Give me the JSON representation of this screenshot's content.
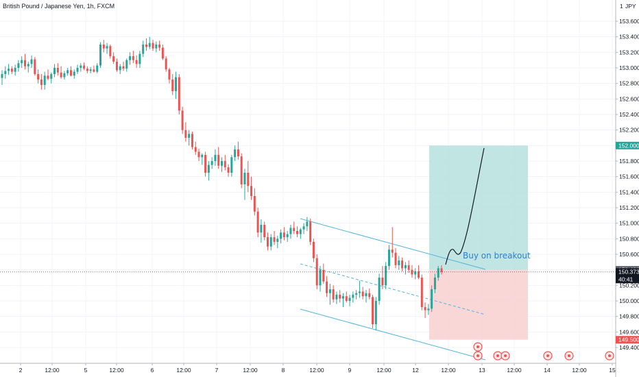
{
  "header": {
    "title": "British Pound / Japanese Yen, 1h, FXCM",
    "currency_label": "JPY",
    "currency_count": "1"
  },
  "colors": {
    "up": "#26a69a",
    "down": "#ef5350",
    "target_zone": "#b2dfdb",
    "stop_zone": "#f8d0d0",
    "channel": "#4fb3e0",
    "target_badge": "#22a699",
    "stop_badge": "#ef5350",
    "price_badge": "#131722"
  },
  "chart_data": {
    "type": "candlestick",
    "symbol": "British Pound / Japanese Yen",
    "interval": "1h",
    "source": "FXCM",
    "y_axis": {
      "ticks": [
        "153.600",
        "153.400",
        "153.200",
        "153.000",
        "152.800",
        "152.600",
        "152.400",
        "152.200",
        "152.000",
        "151.800",
        "151.600",
        "151.400",
        "151.200",
        "151.000",
        "150.800",
        "150.600",
        "150.400",
        "150.200",
        "150.000",
        "149.800",
        "149.600",
        "149.500",
        "149.400"
      ],
      "tick_values": [
        153.6,
        153.4,
        153.2,
        153.0,
        152.8,
        152.6,
        152.4,
        152.2,
        152.0,
        151.8,
        151.6,
        151.4,
        151.2,
        151.0,
        150.8,
        150.6,
        150.4,
        150.2,
        150.0,
        149.8,
        149.6,
        149.5,
        149.4
      ],
      "range": [
        149.37,
        153.72
      ]
    },
    "x_axis": {
      "ticks": [
        "2",
        "12:00",
        "5",
        "12:00",
        "6",
        "12:00",
        "7",
        "12:00",
        "8",
        "12:00",
        "9",
        "12:00",
        "12",
        "12:00",
        "13",
        "12:00",
        "14",
        "12:00",
        "15"
      ]
    },
    "price_levels": {
      "target": {
        "label": "152.000",
        "value": 152.0
      },
      "entry": {
        "label": "150.400",
        "value": 150.4
      },
      "current": {
        "label": "150.373",
        "value": 150.373,
        "countdown": "40:41"
      },
      "stop": {
        "label": "149.500",
        "value": 149.5
      }
    },
    "annotation": "Buy on breakout",
    "candles": [
      [
        152.87,
        152.97,
        152.78,
        152.92
      ],
      [
        152.92,
        153.02,
        152.86,
        152.96
      ],
      [
        152.96,
        153.05,
        152.91,
        152.99
      ],
      [
        152.99,
        153.02,
        152.92,
        152.95
      ],
      [
        152.95,
        153.04,
        152.9,
        153.0
      ],
      [
        153.0,
        153.1,
        152.95,
        153.06
      ],
      [
        153.06,
        153.15,
        153.0,
        153.1
      ],
      [
        153.1,
        153.18,
        152.98,
        153.02
      ],
      [
        153.02,
        153.08,
        152.94,
        153.05
      ],
      [
        153.05,
        153.16,
        153.0,
        153.11
      ],
      [
        153.11,
        153.14,
        152.9,
        152.92
      ],
      [
        152.92,
        152.98,
        152.8,
        152.85
      ],
      [
        152.85,
        152.92,
        152.72,
        152.78
      ],
      [
        152.78,
        152.95,
        152.72,
        152.9
      ],
      [
        152.9,
        152.98,
        152.84,
        152.86
      ],
      [
        152.86,
        152.94,
        152.8,
        152.92
      ],
      [
        152.92,
        153.05,
        152.88,
        153.0
      ],
      [
        153.0,
        153.06,
        152.9,
        152.94
      ],
      [
        152.94,
        153.02,
        152.86,
        152.88
      ],
      [
        152.88,
        152.96,
        152.85,
        152.93
      ],
      [
        152.93,
        153.0,
        152.9,
        152.97
      ],
      [
        152.97,
        153.02,
        152.89,
        152.9
      ],
      [
        152.9,
        152.98,
        152.86,
        152.95
      ],
      [
        152.95,
        153.04,
        152.92,
        153.0
      ],
      [
        153.0,
        153.06,
        152.95,
        153.03
      ],
      [
        153.03,
        153.07,
        152.97,
        152.99
      ],
      [
        152.99,
        153.02,
        152.93,
        152.96
      ],
      [
        152.96,
        153.01,
        152.93,
        152.98
      ],
      [
        152.98,
        153.03,
        152.94,
        152.95
      ],
      [
        152.95,
        153.06,
        152.93,
        153.03
      ],
      [
        153.03,
        153.33,
        153.0,
        153.3
      ],
      [
        153.3,
        153.36,
        153.2,
        153.25
      ],
      [
        153.25,
        153.32,
        153.18,
        153.28
      ],
      [
        153.28,
        153.3,
        153.12,
        153.15
      ],
      [
        153.15,
        153.2,
        153.05,
        153.08
      ],
      [
        153.08,
        153.12,
        152.95,
        152.97
      ],
      [
        152.97,
        153.05,
        152.92,
        153.02
      ],
      [
        153.02,
        153.08,
        152.96,
        152.99
      ],
      [
        152.99,
        153.12,
        152.95,
        153.1
      ],
      [
        153.1,
        153.2,
        153.04,
        153.15
      ],
      [
        153.15,
        153.22,
        153.06,
        153.1
      ],
      [
        153.1,
        153.16,
        153.0,
        153.05
      ],
      [
        153.05,
        153.22,
        153.0,
        153.18
      ],
      [
        153.18,
        153.35,
        153.14,
        153.3
      ],
      [
        153.3,
        153.38,
        153.22,
        153.27
      ],
      [
        153.27,
        153.4,
        153.24,
        153.32
      ],
      [
        153.32,
        153.36,
        153.22,
        153.25
      ],
      [
        153.25,
        153.34,
        153.2,
        153.3
      ],
      [
        153.3,
        153.35,
        153.22,
        153.26
      ],
      [
        153.26,
        153.3,
        153.1,
        153.12
      ],
      [
        153.12,
        153.15,
        152.95,
        152.98
      ],
      [
        152.98,
        153.0,
        152.8,
        152.85
      ],
      [
        152.85,
        152.92,
        152.65,
        152.7
      ],
      [
        152.7,
        152.95,
        152.6,
        152.88
      ],
      [
        152.88,
        152.92,
        152.4,
        152.45
      ],
      [
        152.45,
        152.5,
        152.15,
        152.2
      ],
      [
        152.2,
        152.3,
        152.05,
        152.1
      ],
      [
        152.1,
        152.2,
        152.0,
        152.15
      ],
      [
        152.15,
        152.18,
        151.95,
        151.98
      ],
      [
        151.98,
        152.05,
        151.88,
        151.92
      ],
      [
        151.92,
        151.96,
        151.8,
        151.85
      ],
      [
        151.85,
        151.9,
        151.75,
        151.88
      ],
      [
        151.88,
        151.92,
        151.6,
        151.65
      ],
      [
        151.65,
        151.8,
        151.55,
        151.75
      ],
      [
        151.75,
        151.85,
        151.7,
        151.8
      ],
      [
        151.8,
        151.95,
        151.74,
        151.88
      ],
      [
        151.88,
        151.98,
        151.7,
        151.74
      ],
      [
        151.74,
        151.85,
        151.66,
        151.8
      ],
      [
        151.8,
        151.88,
        151.68,
        151.72
      ],
      [
        151.72,
        151.76,
        151.6,
        151.65
      ],
      [
        151.65,
        151.88,
        151.6,
        151.85
      ],
      [
        151.85,
        152.0,
        151.8,
        151.95
      ],
      [
        151.95,
        152.05,
        151.82,
        151.86
      ],
      [
        151.86,
        151.9,
        151.45,
        151.5
      ],
      [
        151.5,
        151.7,
        151.3,
        151.65
      ],
      [
        151.65,
        151.8,
        151.4,
        151.48
      ],
      [
        151.48,
        151.6,
        151.3,
        151.35
      ],
      [
        151.35,
        151.45,
        151.1,
        151.15
      ],
      [
        151.15,
        151.2,
        150.82,
        150.88
      ],
      [
        150.88,
        151.05,
        150.75,
        150.98
      ],
      [
        150.98,
        151.02,
        150.78,
        150.82
      ],
      [
        150.82,
        150.88,
        150.65,
        150.7
      ],
      [
        150.7,
        150.86,
        150.65,
        150.82
      ],
      [
        150.82,
        150.9,
        150.72,
        150.76
      ],
      [
        150.76,
        150.84,
        150.68,
        150.8
      ],
      [
        150.8,
        150.92,
        150.74,
        150.88
      ],
      [
        150.88,
        150.95,
        150.78,
        150.82
      ],
      [
        150.82,
        150.9,
        150.76,
        150.86
      ],
      [
        150.86,
        150.98,
        150.8,
        150.94
      ],
      [
        150.94,
        151.02,
        150.86,
        150.9
      ],
      [
        150.9,
        150.96,
        150.82,
        150.86
      ],
      [
        150.86,
        150.94,
        150.8,
        150.92
      ],
      [
        150.92,
        151.0,
        150.86,
        150.96
      ],
      [
        150.96,
        151.08,
        150.9,
        151.02
      ],
      [
        151.02,
        151.06,
        150.72,
        150.76
      ],
      [
        150.76,
        150.8,
        150.5,
        150.55
      ],
      [
        150.55,
        150.6,
        150.15,
        150.2
      ],
      [
        150.2,
        150.45,
        150.12,
        150.4
      ],
      [
        150.4,
        150.48,
        150.22,
        150.25
      ],
      [
        150.25,
        150.32,
        150.05,
        150.1
      ],
      [
        150.1,
        150.22,
        149.95,
        150.15
      ],
      [
        150.15,
        150.2,
        149.98,
        150.02
      ],
      [
        150.02,
        150.12,
        149.96,
        150.08
      ],
      [
        150.08,
        150.14,
        149.98,
        150.03
      ],
      [
        150.03,
        150.1,
        149.92,
        150.06
      ],
      [
        150.06,
        150.12,
        149.98,
        150.0
      ],
      [
        150.0,
        150.08,
        149.93,
        150.04
      ],
      [
        150.04,
        150.12,
        149.98,
        150.08
      ],
      [
        150.08,
        150.14,
        150.02,
        150.1
      ],
      [
        150.1,
        150.26,
        150.04,
        150.12
      ],
      [
        150.12,
        150.18,
        150.02,
        150.06
      ],
      [
        150.06,
        150.14,
        149.98,
        150.1
      ],
      [
        150.1,
        150.16,
        150.02,
        150.05
      ],
      [
        150.05,
        150.08,
        149.65,
        149.7
      ],
      [
        149.7,
        150.05,
        149.62,
        150.0
      ],
      [
        150.0,
        150.35,
        149.95,
        150.3
      ],
      [
        150.3,
        150.45,
        150.15,
        150.2
      ],
      [
        150.2,
        150.5,
        150.15,
        150.45
      ],
      [
        150.45,
        150.72,
        150.4,
        150.66
      ],
      [
        150.66,
        150.95,
        150.56,
        150.62
      ],
      [
        150.62,
        150.68,
        150.42,
        150.46
      ],
      [
        150.46,
        150.58,
        150.4,
        150.52
      ],
      [
        150.52,
        150.56,
        150.38,
        150.42
      ],
      [
        150.42,
        150.5,
        150.34,
        150.46
      ],
      [
        150.46,
        150.52,
        150.36,
        150.4
      ],
      [
        150.4,
        150.46,
        150.3,
        150.34
      ],
      [
        150.34,
        150.42,
        150.28,
        150.38
      ],
      [
        150.38,
        150.46,
        150.28,
        150.3
      ],
      [
        150.3,
        150.34,
        149.88,
        149.92
      ],
      [
        149.92,
        149.98,
        149.78,
        149.88
      ],
      [
        149.88,
        149.96,
        149.82,
        149.9
      ],
      [
        149.9,
        150.2,
        149.86,
        150.15
      ],
      [
        150.15,
        150.35,
        150.1,
        150.3
      ],
      [
        150.3,
        150.45,
        150.26,
        150.42
      ],
      [
        150.42,
        150.46,
        150.34,
        150.37
      ]
    ]
  }
}
